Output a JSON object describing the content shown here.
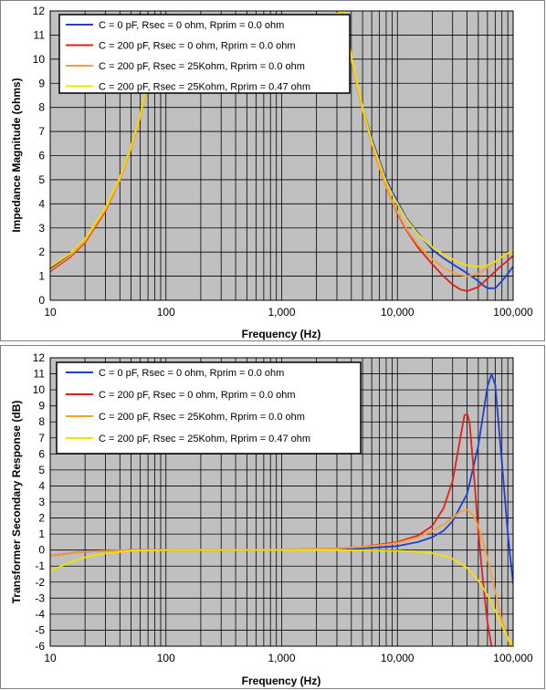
{
  "chart_data": [
    {
      "type": "line",
      "title": "",
      "xlabel": "Frequency (Hz)",
      "ylabel": "Impedance Magnitude (ohms)",
      "xscale": "log",
      "xlim": [
        10,
        100000
      ],
      "ylim": [
        0,
        12
      ],
      "x_tick_labels": [
        "10",
        "100",
        "1,000",
        "10,000",
        "100,000"
      ],
      "x_tick_values": [
        10,
        100,
        1000,
        10000,
        100000
      ],
      "y_ticks": [
        0,
        1,
        2,
        3,
        4,
        5,
        6,
        7,
        8,
        9,
        10,
        11,
        12
      ],
      "grid": true,
      "legend_position": "top-left",
      "series": [
        {
          "name": "C = 0 pF, Rsec = 0 ohm, Rprim = 0.0 ohm",
          "color": "#1f3fcf",
          "x": [
            10,
            15,
            20,
            30,
            40,
            50,
            60,
            70,
            3500,
            4000,
            5000,
            6000,
            7000,
            8000,
            9000,
            10000,
            12000,
            15000,
            20000,
            25000,
            30000,
            35000,
            40000,
            50000,
            55000,
            60000,
            70000,
            80000,
            90000,
            100000
          ],
          "y": [
            1.3,
            1.9,
            2.5,
            3.8,
            5.1,
            6.4,
            7.7,
            9.2,
            12,
            10,
            8,
            6.7,
            5.8,
            5.0,
            4.5,
            4.1,
            3.4,
            2.8,
            2.1,
            1.75,
            1.5,
            1.3,
            1.12,
            0.8,
            0.62,
            0.5,
            0.5,
            0.8,
            1.1,
            1.4
          ]
        },
        {
          "name": "C = 200 pF, Rsec = 0 ohm, Rprim = 0.0 ohm",
          "color": "#e0201a",
          "x": [
            10,
            15,
            20,
            30,
            40,
            50,
            60,
            70,
            3500,
            4000,
            5000,
            6000,
            7000,
            8000,
            9000,
            10000,
            12000,
            15000,
            20000,
            25000,
            30000,
            35000,
            40000,
            50000,
            60000,
            70000,
            80000,
            90000,
            100000
          ],
          "y": [
            1.2,
            1.8,
            2.4,
            3.7,
            5.0,
            6.3,
            7.6,
            9.1,
            12,
            10,
            7.9,
            6.5,
            5.5,
            4.7,
            4.1,
            3.6,
            2.9,
            2.2,
            1.5,
            1.0,
            0.65,
            0.45,
            0.38,
            0.55,
            0.9,
            1.2,
            1.45,
            1.65,
            1.85
          ]
        },
        {
          "name": "C = 200 pF, Rsec = 25Kohm, Rprim = 0.0 ohm",
          "color": "#f5a033",
          "x": [
            10,
            15,
            20,
            30,
            40,
            50,
            60,
            70,
            3500,
            4000,
            5000,
            6000,
            7000,
            8000,
            9000,
            10000,
            12000,
            15000,
            20000,
            25000,
            30000,
            35000,
            40000,
            50000,
            60000,
            70000,
            80000,
            90000,
            100000
          ],
          "y": [
            1.25,
            1.85,
            2.45,
            3.75,
            5.0,
            6.3,
            7.6,
            9.1,
            12,
            10,
            7.9,
            6.5,
            5.5,
            4.7,
            4.1,
            3.65,
            2.95,
            2.3,
            1.7,
            1.35,
            1.15,
            1.05,
            1.0,
            1.1,
            1.35,
            1.6,
            1.8,
            1.95,
            2.05
          ]
        },
        {
          "name": "C = 200 pF, Rsec = 25Kohm, Rprim = 0.47 ohm",
          "color": "#f5e100",
          "x": [
            10,
            15,
            20,
            30,
            40,
            50,
            60,
            70,
            3500,
            4000,
            5000,
            6000,
            7000,
            8000,
            9000,
            10000,
            12000,
            15000,
            20000,
            25000,
            30000,
            35000,
            40000,
            50000,
            60000,
            70000,
            80000,
            90000,
            100000
          ],
          "y": [
            1.4,
            1.95,
            2.55,
            3.85,
            5.1,
            6.4,
            7.7,
            9.2,
            12,
            10.1,
            8.0,
            6.6,
            5.7,
            4.9,
            4.4,
            4.0,
            3.35,
            2.75,
            2.2,
            1.9,
            1.7,
            1.55,
            1.45,
            1.4,
            1.45,
            1.6,
            1.8,
            1.95,
            2.05
          ]
        }
      ]
    },
    {
      "type": "line",
      "title": "",
      "xlabel": "Frequency (Hz)",
      "ylabel": "Transformer Secondary Response (dB)",
      "xscale": "log",
      "xlim": [
        10,
        100000
      ],
      "ylim": [
        -6,
        12
      ],
      "x_tick_labels": [
        "10",
        "100",
        "1,000",
        "10,000",
        "100,000"
      ],
      "x_tick_values": [
        10,
        100,
        1000,
        10000,
        100000
      ],
      "y_ticks": [
        -6,
        -5,
        -4,
        -3,
        -2,
        -1,
        0,
        1,
        2,
        3,
        4,
        5,
        6,
        7,
        8,
        9,
        10,
        11,
        12
      ],
      "grid": true,
      "legend_position": "top-left",
      "series": [
        {
          "name": "C = 0 pF, Rsec = 0 ohm, Rprim = 0.0 ohm",
          "color": "#1f3fcf",
          "x": [
            10,
            20,
            50,
            100,
            300,
            1000,
            3000,
            5000,
            8000,
            10000,
            15000,
            20000,
            25000,
            30000,
            40000,
            50000,
            60000,
            65000,
            70000,
            80000,
            90000,
            100000
          ],
          "y": [
            -0.35,
            -0.1,
            0,
            0,
            0,
            0,
            0.05,
            0.1,
            0.2,
            0.25,
            0.5,
            0.8,
            1.2,
            1.8,
            3.5,
            6.5,
            10.2,
            11,
            10.3,
            5.5,
            1.0,
            -2.1
          ]
        },
        {
          "name": "C = 200 pF, Rsec = 0 ohm, Rprim = 0.0 ohm",
          "color": "#e0201a",
          "x": [
            10,
            20,
            50,
            100,
            300,
            1000,
            3000,
            5000,
            8000,
            10000,
            15000,
            20000,
            25000,
            30000,
            35000,
            38000,
            40000,
            42000,
            45000,
            50000,
            55000,
            60000,
            65000
          ],
          "y": [
            -0.35,
            -0.1,
            0,
            0,
            0,
            0.02,
            0.1,
            0.2,
            0.4,
            0.5,
            0.9,
            1.5,
            2.6,
            4.3,
            7.0,
            8.4,
            8.5,
            8.0,
            5.5,
            1.2,
            -2.0,
            -4.5,
            -6
          ]
        },
        {
          "name": "C = 200 pF, Rsec = 25Kohm, Rprim = 0.0 ohm",
          "color": "#f5a033",
          "x": [
            10,
            20,
            50,
            100,
            300,
            1000,
            3000,
            5000,
            8000,
            10000,
            15000,
            20000,
            25000,
            30000,
            35000,
            40000,
            45000,
            50000,
            60000,
            70000,
            80000,
            90000,
            95000
          ],
          "y": [
            -0.35,
            -0.1,
            0,
            0,
            0,
            0.02,
            0.1,
            0.2,
            0.35,
            0.45,
            0.8,
            1.2,
            1.6,
            2.0,
            2.4,
            2.5,
            2.2,
            1.5,
            -0.5,
            -2.6,
            -4.4,
            -5.6,
            -6
          ]
        },
        {
          "name": "C = 200 pF, Rsec = 25Kohm, Rprim = 0.47 ohm",
          "color": "#f5e100",
          "x": [
            10,
            15,
            20,
            30,
            50,
            100,
            300,
            1000,
            3000,
            10000,
            15000,
            20000,
            25000,
            30000,
            40000,
            50000,
            60000,
            70000,
            80000,
            90000,
            100000
          ],
          "y": [
            -1.3,
            -0.75,
            -0.45,
            -0.2,
            -0.05,
            0,
            0,
            0,
            0,
            -0.05,
            -0.1,
            -0.2,
            -0.35,
            -0.55,
            -1.1,
            -1.9,
            -2.8,
            -3.8,
            -4.7,
            -5.5,
            -6
          ]
        }
      ]
    }
  ]
}
